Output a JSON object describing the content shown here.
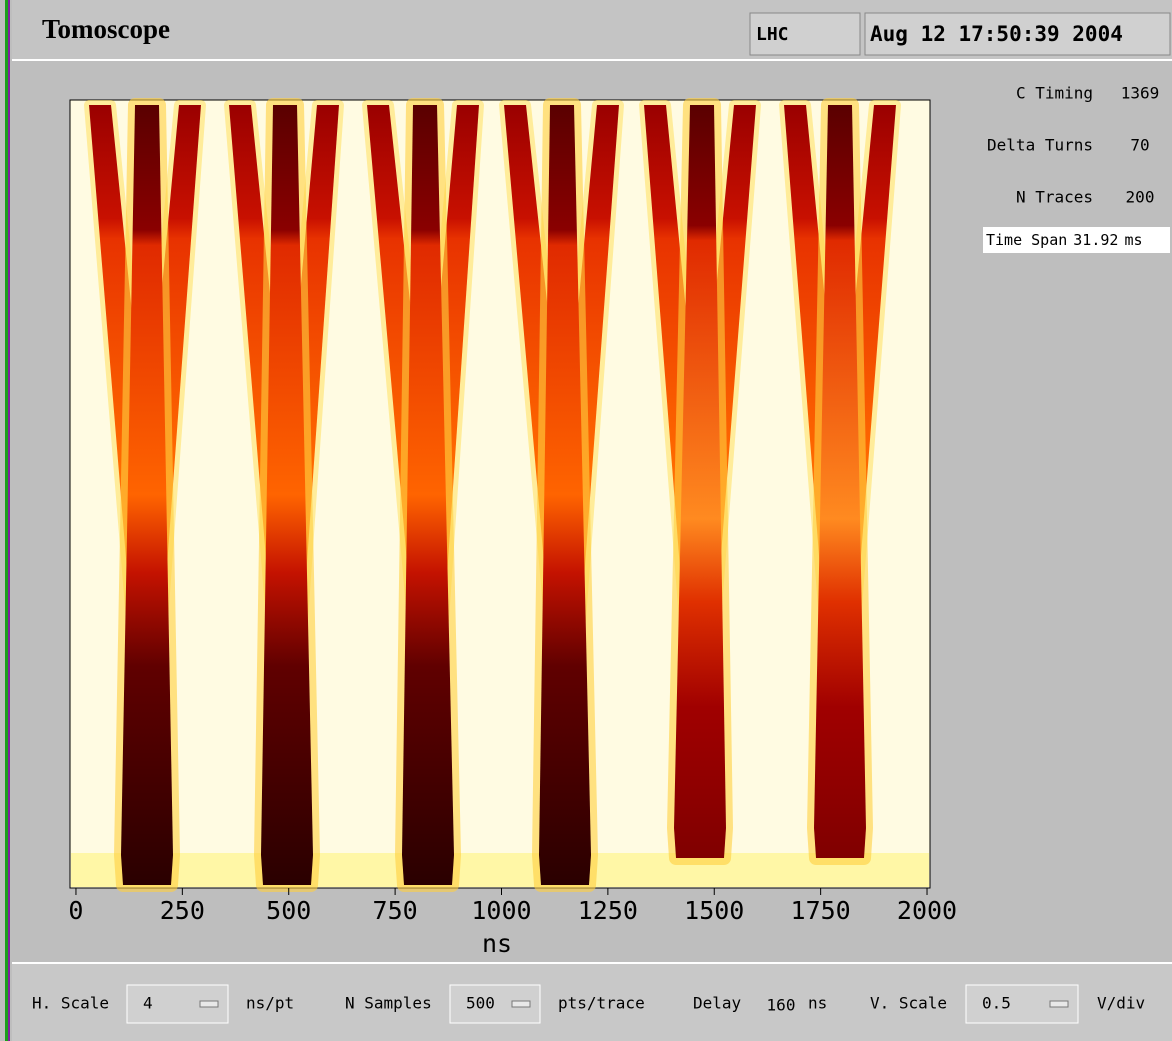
{
  "header": {
    "title": "Tomoscope",
    "machine": "LHC",
    "timestamp": "Aug 12 17:50:39 2004"
  },
  "chart_data": {
    "type": "heatmap",
    "x_label": "ns",
    "xlim": [
      -14,
      2007
    ],
    "xticks": [
      0,
      250,
      500,
      750,
      1000,
      1250,
      1500,
      1750,
      2000
    ]
  },
  "readouts": [
    {
      "label": "C Timing",
      "value": 1369
    },
    {
      "label": "Delta Turns",
      "value": 70
    },
    {
      "label": "N Traces",
      "value": 200
    },
    {
      "label": "Time Span",
      "value": 31.92,
      "unit": "ms"
    }
  ],
  "controls": [
    {
      "label": "H. Scale",
      "value": 4,
      "unit": "ns/pt"
    },
    {
      "label": "N Samples",
      "value": 500,
      "unit": "pts/trace"
    },
    {
      "label": "Delay",
      "value": 160,
      "unit": "ns"
    },
    {
      "label": "V. Scale",
      "value": 0.5,
      "unit": "V/div"
    }
  ]
}
